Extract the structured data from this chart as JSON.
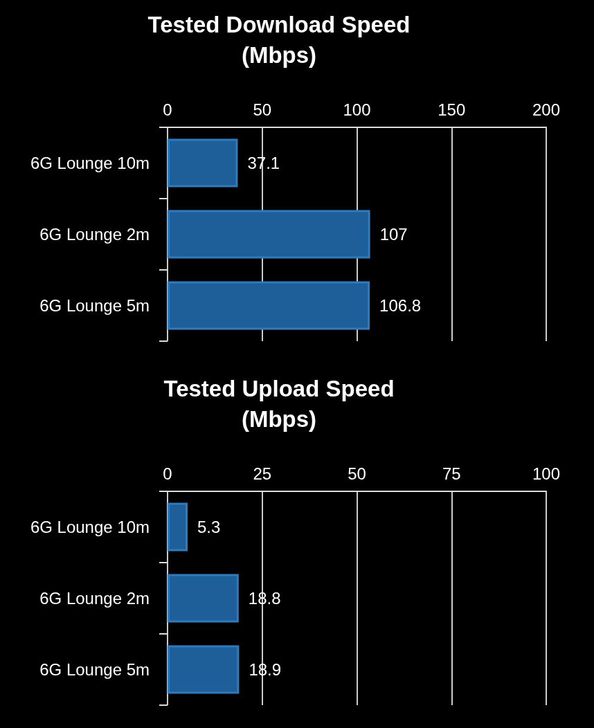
{
  "chart_data": [
    {
      "type": "bar",
      "orientation": "horizontal",
      "title": "Tested Download Speed\n(Mbps)",
      "categories": [
        "6G Lounge 10m",
        "6G Lounge 2m",
        "6G Lounge 5m"
      ],
      "values": [
        37.1,
        107,
        106.8
      ],
      "color": "#1f5f99",
      "xlim": [
        0,
        200
      ],
      "xticks": [
        0,
        50,
        100,
        150,
        200
      ],
      "grid": "x",
      "data_labels": true
    },
    {
      "type": "bar",
      "orientation": "horizontal",
      "title": "Tested Upload Speed\n(Mbps)",
      "categories": [
        "6G Lounge 10m",
        "6G Lounge 2m",
        "6G Lounge 5m"
      ],
      "values": [
        5.3,
        18.8,
        18.9
      ],
      "color": "#1f5f99",
      "xlim": [
        0,
        100
      ],
      "xticks": [
        0,
        25,
        50,
        75,
        100
      ],
      "grid": "x",
      "data_labels": true
    }
  ]
}
